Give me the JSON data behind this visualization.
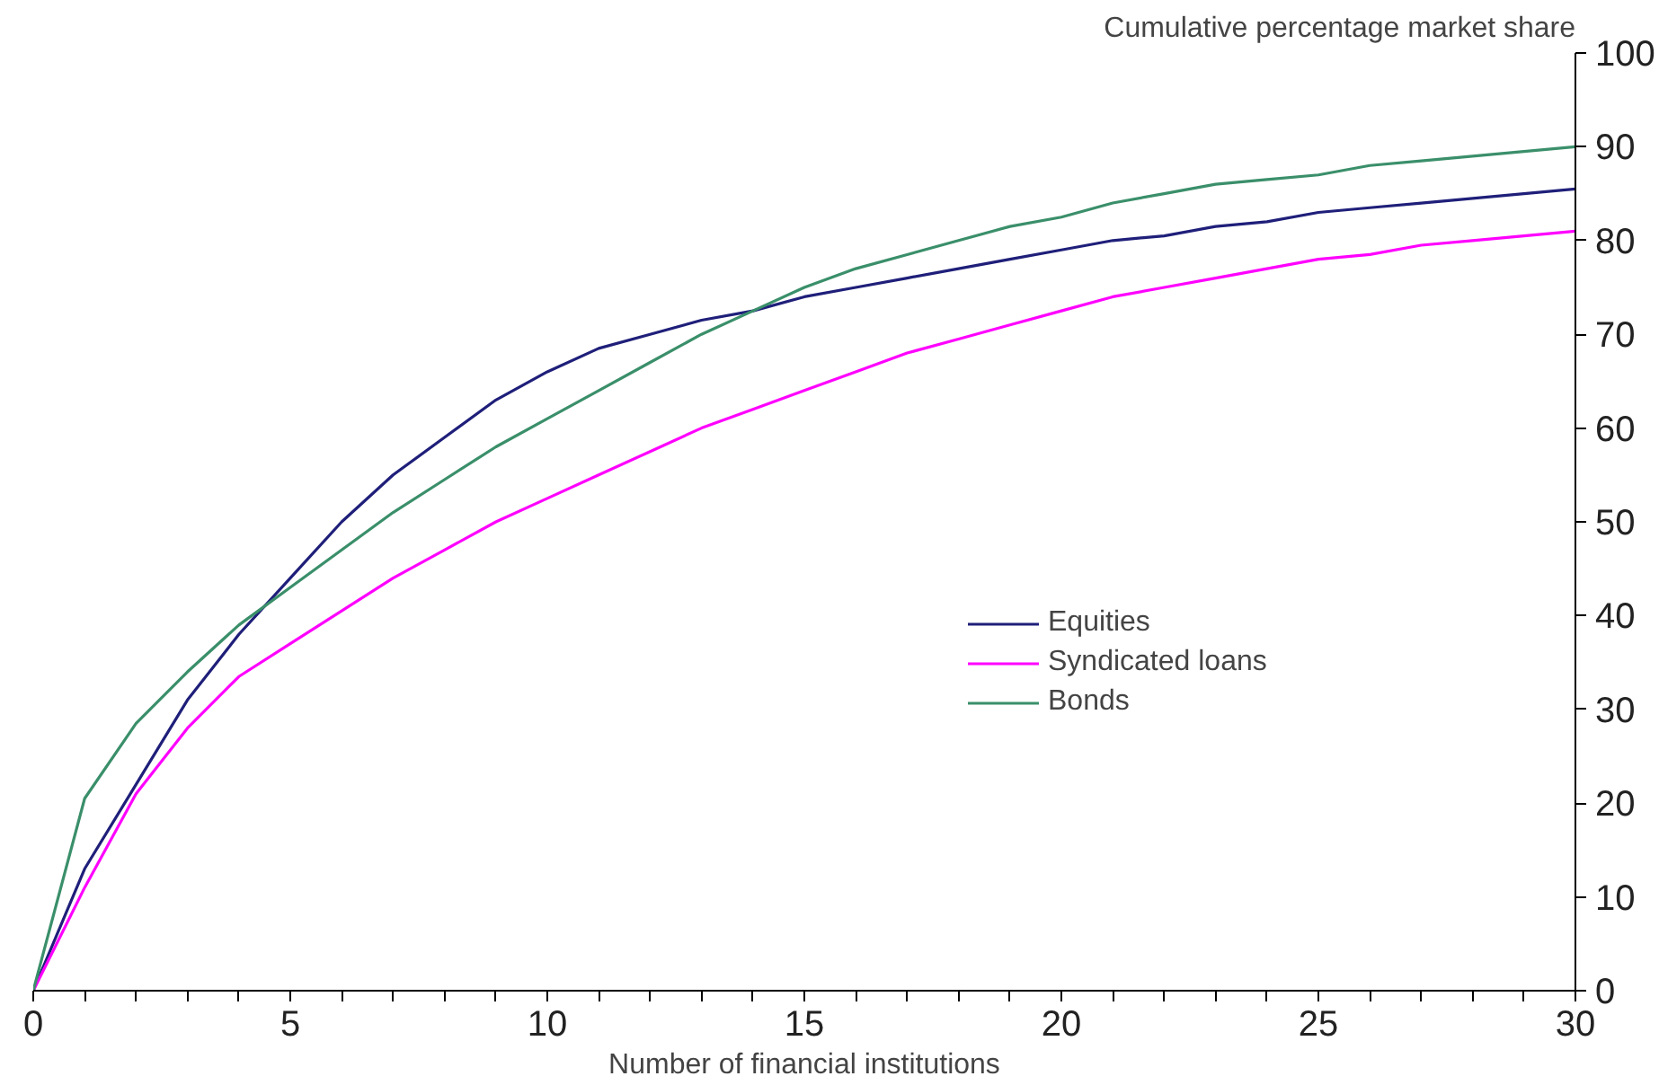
{
  "chart_data": {
    "type": "line",
    "xlabel": "Number of financial institutions",
    "ylabel": "Cumulative percentage market share",
    "x": [
      0,
      1,
      2,
      3,
      4,
      5,
      6,
      7,
      8,
      9,
      10,
      11,
      12,
      13,
      14,
      15,
      16,
      17,
      18,
      19,
      20,
      21,
      22,
      23,
      24,
      25,
      26,
      27,
      28,
      29,
      30
    ],
    "series": [
      {
        "name": "Equities",
        "color": "#1f1f7a",
        "values": [
          0,
          13,
          22,
          31,
          38,
          44,
          50,
          55,
          59,
          63,
          66,
          68.5,
          70,
          71.5,
          72.5,
          74,
          75,
          76,
          77,
          78,
          79,
          80,
          80.5,
          81.5,
          82,
          83,
          83.5,
          84,
          84.5,
          85,
          85.5
        ]
      },
      {
        "name": "Syndicated loans",
        "color": "#ff00ff",
        "values": [
          0,
          11,
          21,
          28,
          33.5,
          37,
          40.5,
          44,
          47,
          50,
          52.5,
          55,
          57.5,
          60,
          62,
          64,
          66,
          68,
          69.5,
          71,
          72.5,
          74,
          75,
          76,
          77,
          78,
          78.5,
          79.5,
          80,
          80.5,
          81
        ]
      },
      {
        "name": "Bonds",
        "color": "#3a8f6a",
        "values": [
          0,
          20.5,
          28.5,
          34,
          39,
          43,
          47,
          51,
          54.5,
          58,
          61,
          64,
          67,
          70,
          72.5,
          75,
          77,
          78.5,
          80,
          81.5,
          82.5,
          84,
          85,
          86,
          86.5,
          87,
          88,
          88.5,
          89,
          89.5,
          90
        ]
      }
    ],
    "xlim": [
      0,
      30
    ],
    "xticks": [
      0,
      {
        "value": 1,
        "label": null
      },
      {
        "value": 2,
        "label": null
      },
      {
        "value": 3,
        "label": null
      },
      {
        "value": 4,
        "label": null
      },
      5,
      {
        "value": 6,
        "label": null
      },
      {
        "value": 7,
        "label": null
      },
      {
        "value": 8,
        "label": null
      },
      {
        "value": 9,
        "label": null
      },
      10,
      {
        "value": 11,
        "label": null
      },
      {
        "value": 12,
        "label": null
      },
      {
        "value": 13,
        "label": null
      },
      {
        "value": 14,
        "label": null
      },
      15,
      {
        "value": 16,
        "label": null
      },
      {
        "value": 17,
        "label": null
      },
      {
        "value": 18,
        "label": null
      },
      {
        "value": 19,
        "label": null
      },
      20,
      {
        "value": 21,
        "label": null
      },
      {
        "value": 22,
        "label": null
      },
      {
        "value": 23,
        "label": null
      },
      {
        "value": 24,
        "label": null
      },
      25,
      {
        "value": 26,
        "label": null
      },
      {
        "value": 27,
        "label": null
      },
      {
        "value": 28,
        "label": null
      },
      {
        "value": 29,
        "label": null
      },
      30
    ],
    "ylim": [
      0,
      100
    ],
    "yticks": [
      0,
      10,
      20,
      30,
      40,
      50,
      60,
      70,
      80,
      90,
      100
    ],
    "grid": false,
    "legend": "right",
    "marker": "none",
    "line_style": "solid"
  }
}
